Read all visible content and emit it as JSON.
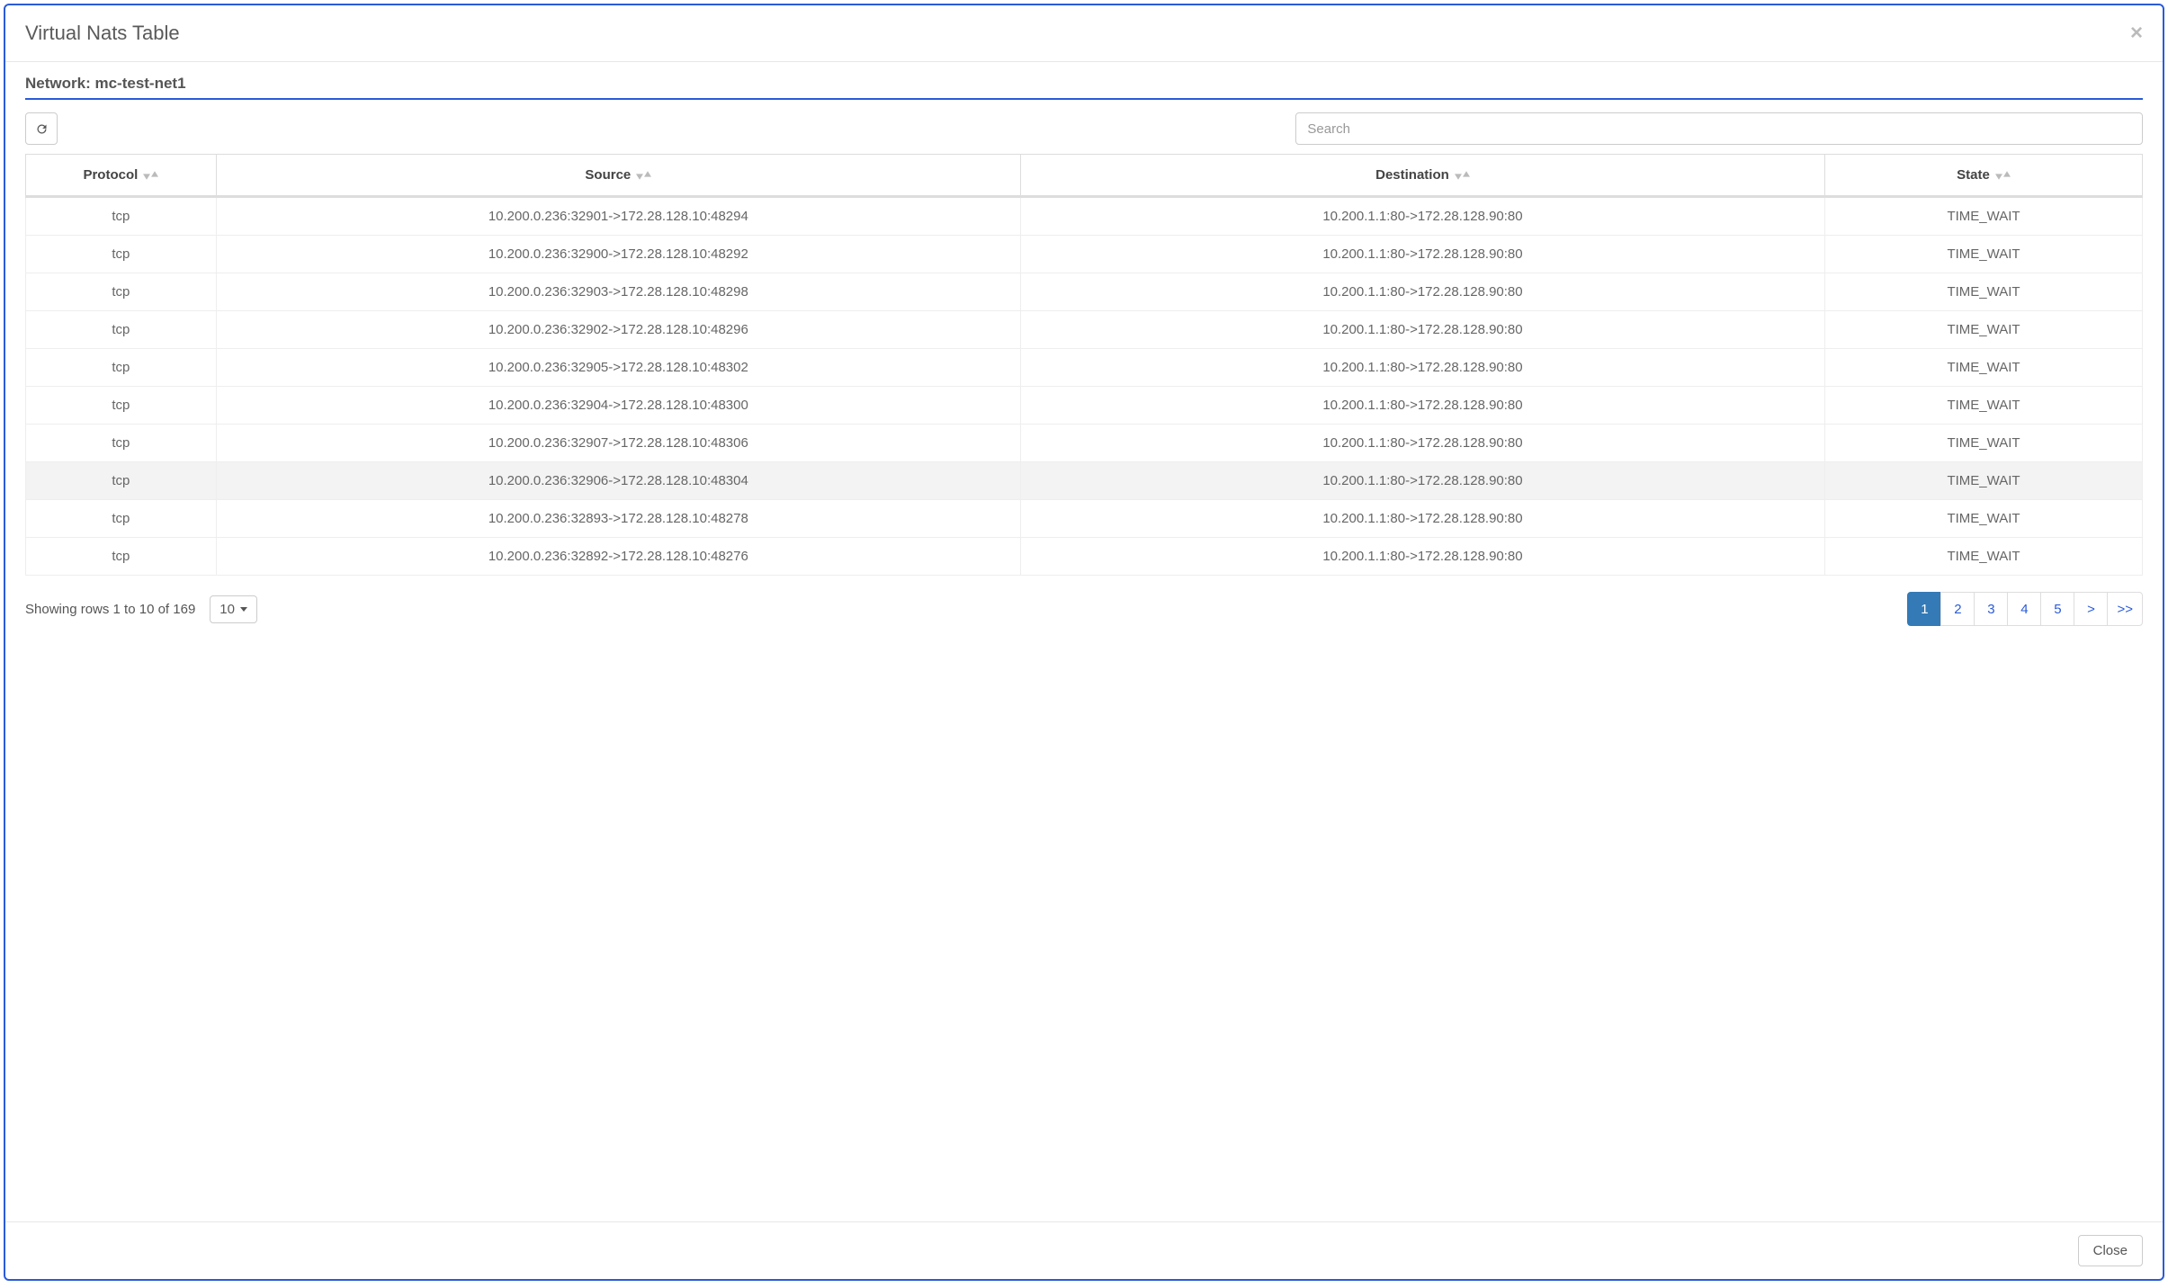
{
  "modal": {
    "title": "Virtual Nats Table",
    "close_button_label": "Close"
  },
  "network": {
    "label_prefix": "Network: ",
    "name": "mc-test-net1"
  },
  "toolbar": {
    "search_placeholder": "Search"
  },
  "table": {
    "columns": [
      "Protocol",
      "Source",
      "Destination",
      "State"
    ],
    "column_widths_pct": [
      9,
      38,
      38,
      15
    ],
    "hover_row_index": 7,
    "rows": [
      {
        "protocol": "tcp",
        "source": "10.200.0.236:32901->172.28.128.10:48294",
        "destination": "10.200.1.1:80->172.28.128.90:80",
        "state": "TIME_WAIT"
      },
      {
        "protocol": "tcp",
        "source": "10.200.0.236:32900->172.28.128.10:48292",
        "destination": "10.200.1.1:80->172.28.128.90:80",
        "state": "TIME_WAIT"
      },
      {
        "protocol": "tcp",
        "source": "10.200.0.236:32903->172.28.128.10:48298",
        "destination": "10.200.1.1:80->172.28.128.90:80",
        "state": "TIME_WAIT"
      },
      {
        "protocol": "tcp",
        "source": "10.200.0.236:32902->172.28.128.10:48296",
        "destination": "10.200.1.1:80->172.28.128.90:80",
        "state": "TIME_WAIT"
      },
      {
        "protocol": "tcp",
        "source": "10.200.0.236:32905->172.28.128.10:48302",
        "destination": "10.200.1.1:80->172.28.128.90:80",
        "state": "TIME_WAIT"
      },
      {
        "protocol": "tcp",
        "source": "10.200.0.236:32904->172.28.128.10:48300",
        "destination": "10.200.1.1:80->172.28.128.90:80",
        "state": "TIME_WAIT"
      },
      {
        "protocol": "tcp",
        "source": "10.200.0.236:32907->172.28.128.10:48306",
        "destination": "10.200.1.1:80->172.28.128.90:80",
        "state": "TIME_WAIT"
      },
      {
        "protocol": "tcp",
        "source": "10.200.0.236:32906->172.28.128.10:48304",
        "destination": "10.200.1.1:80->172.28.128.90:80",
        "state": "TIME_WAIT"
      },
      {
        "protocol": "tcp",
        "source": "10.200.0.236:32893->172.28.128.10:48278",
        "destination": "10.200.1.1:80->172.28.128.90:80",
        "state": "TIME_WAIT"
      },
      {
        "protocol": "tcp",
        "source": "10.200.0.236:32892->172.28.128.10:48276",
        "destination": "10.200.1.1:80->172.28.128.90:80",
        "state": "TIME_WAIT"
      }
    ]
  },
  "footer": {
    "rows_info": "Showing rows 1 to 10 of 169",
    "page_size": "10"
  },
  "pagination": {
    "pages": [
      "1",
      "2",
      "3",
      "4",
      "5",
      ">",
      ">>"
    ],
    "active_index": 0
  },
  "colors": {
    "modal_border": "#2a5bd7",
    "active_page_bg": "#337ab7",
    "link": "#2a5bd7",
    "text": "#5a5a5a",
    "border_light": "#dddddd"
  }
}
